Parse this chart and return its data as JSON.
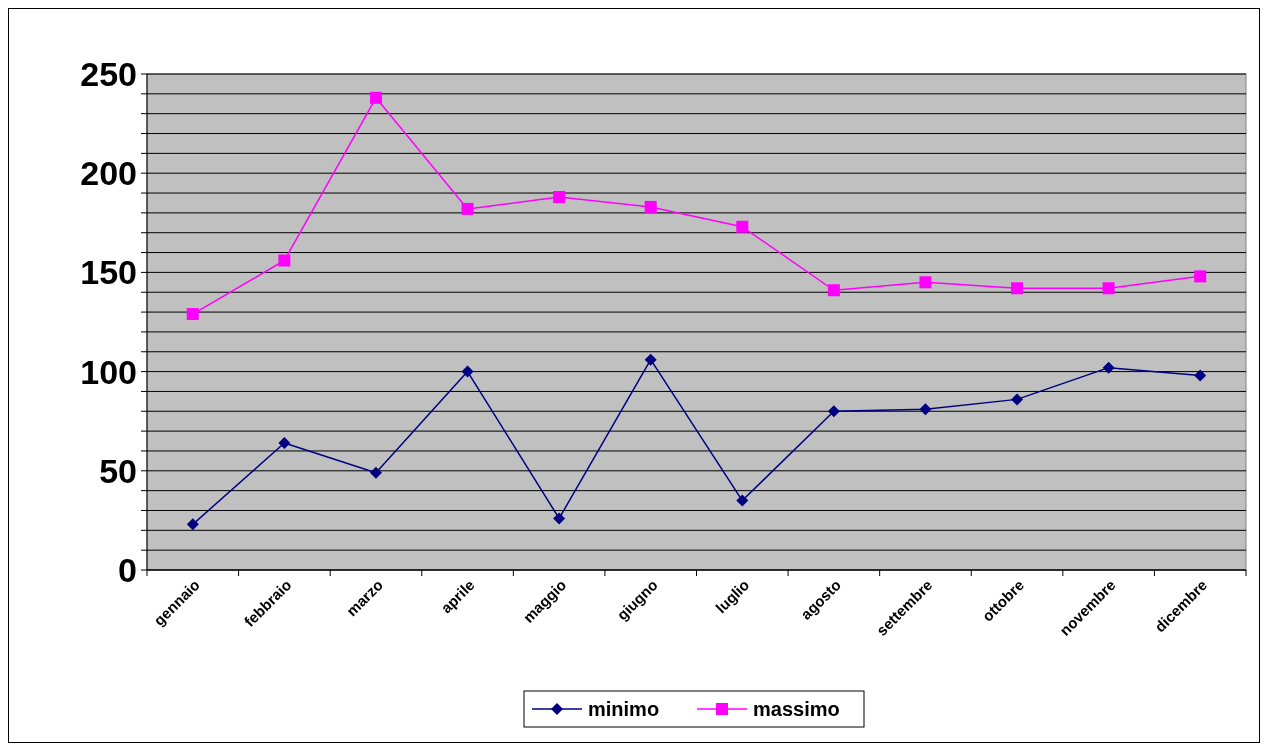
{
  "chart_data": {
    "type": "line",
    "categories": [
      "gennaio",
      "febbraio",
      "marzo",
      "aprile",
      "maggio",
      "giugno",
      "luglio",
      "agosto",
      "settembre",
      "ottobre",
      "novembre",
      "dicembre"
    ],
    "series": [
      {
        "name": "minimo",
        "color": "#000080",
        "marker": "diamond",
        "values": [
          23,
          64,
          49,
          100,
          26,
          106,
          35,
          80,
          81,
          86,
          102,
          98
        ]
      },
      {
        "name": "massimo",
        "color": "#ff00ff",
        "marker": "square",
        "values": [
          129,
          156,
          238,
          182,
          188,
          183,
          173,
          141,
          145,
          142,
          142,
          148
        ]
      }
    ],
    "ylim": [
      0,
      250
    ],
    "yticks": [
      0,
      {
        "value": 10,
        "label": null
      },
      {
        "value": 20,
        "label": null
      },
      {
        "value": 30,
        "label": null
      },
      {
        "value": 40,
        "label": null
      },
      50,
      {
        "value": 60,
        "label": null
      },
      {
        "value": 70,
        "label": null
      },
      {
        "value": 80,
        "label": null
      },
      {
        "value": 90,
        "label": null
      },
      100,
      {
        "value": 110,
        "label": null
      },
      {
        "value": 120,
        "label": null
      },
      {
        "value": 130,
        "label": null
      },
      {
        "value": 140,
        "label": null
      },
      150,
      {
        "value": 160,
        "label": null
      },
      {
        "value": 170,
        "label": null
      },
      {
        "value": 180,
        "label": null
      },
      {
        "value": 190,
        "label": null
      },
      200,
      {
        "value": 210,
        "label": null
      },
      {
        "value": 220,
        "label": null
      },
      {
        "value": 230,
        "label": null
      },
      {
        "value": 240,
        "label": null
      },
      250
    ],
    "grid": "y",
    "legend": "bottom"
  }
}
